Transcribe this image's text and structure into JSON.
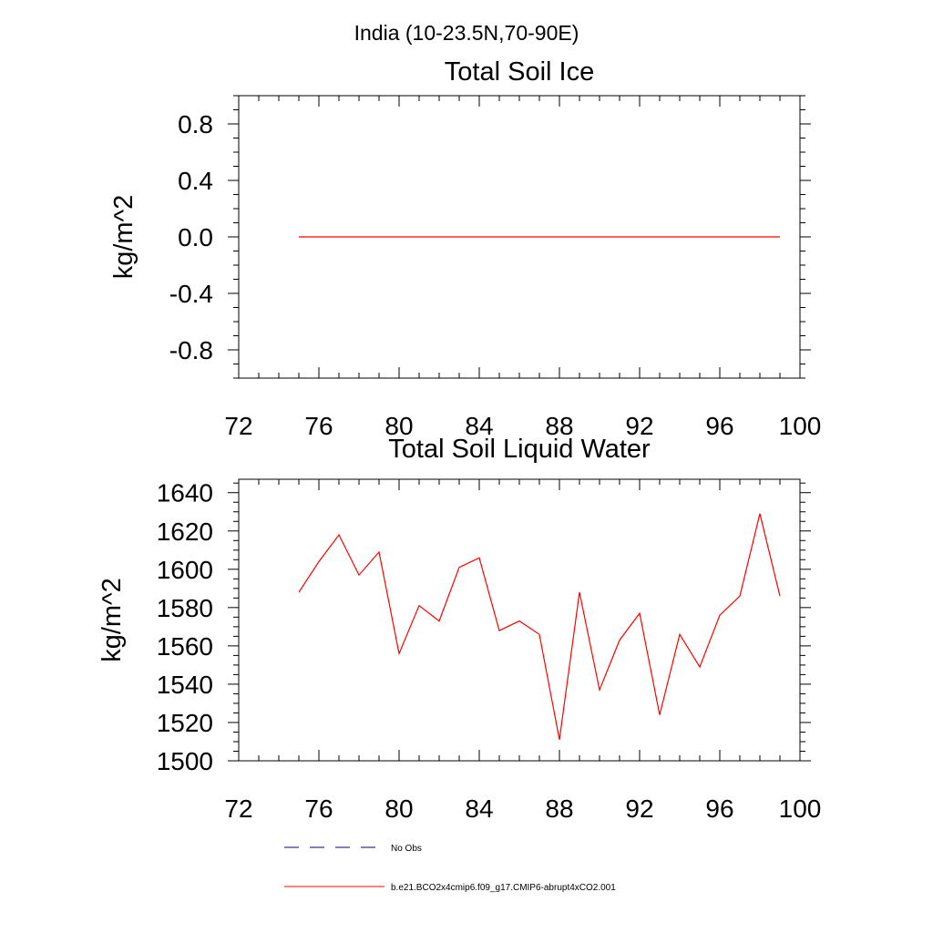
{
  "page_title": "India (10-23.5N,70-90E)",
  "legend": {
    "items": [
      {
        "label": "No Obs",
        "color": "#000080",
        "dashed": true
      },
      {
        "label": "b.e21.BCO2x4cmip6.f09_g17.CMIP6-abrupt4xCO2.001",
        "color": "#ff0000",
        "dashed": false
      }
    ]
  },
  "chart_data": [
    {
      "type": "line",
      "title": "Total Soil Ice",
      "xlabel": "",
      "ylabel": "kg/m^2",
      "xlim": [
        72,
        100
      ],
      "ylim": [
        -1,
        1
      ],
      "x_ticks": [
        "72",
        "76",
        "80",
        "84",
        "88",
        "92",
        "96",
        "100"
      ],
      "y_ticks": [
        "-0.8",
        "-0.4",
        "0.0",
        "0.4",
        "0.8"
      ],
      "grid": false,
      "series": [
        {
          "color": "#ff0000",
          "x": [
            75,
            76,
            77,
            78,
            79,
            80,
            81,
            82,
            83,
            84,
            85,
            86,
            87,
            88,
            89,
            90,
            91,
            92,
            93,
            94,
            95,
            96,
            97,
            98,
            99
          ],
          "values": [
            0,
            0,
            0,
            0,
            0,
            0,
            0,
            0,
            0,
            0,
            0,
            0,
            0,
            0,
            0,
            0,
            0,
            0,
            0,
            0,
            0,
            0,
            0,
            0,
            0
          ]
        }
      ]
    },
    {
      "type": "line",
      "title": "Total Soil Liquid Water",
      "xlabel": "",
      "ylabel": "kg/m^2",
      "xlim": [
        72,
        100
      ],
      "ylim": [
        1500,
        1647
      ],
      "x_ticks": [
        "72",
        "76",
        "80",
        "84",
        "88",
        "92",
        "96",
        "100"
      ],
      "y_ticks": [
        "1500",
        "1520",
        "1540",
        "1560",
        "1580",
        "1600",
        "1620",
        "1640"
      ],
      "grid": false,
      "series": [
        {
          "color": "#ff0000",
          "x": [
            75,
            76,
            77,
            78,
            79,
            80,
            81,
            82,
            83,
            84,
            85,
            86,
            87,
            88,
            89,
            90,
            91,
            92,
            93,
            94,
            95,
            96,
            97,
            98,
            99
          ],
          "values": [
            1588,
            1604,
            1618,
            1597,
            1609,
            1556,
            1581,
            1573,
            1601,
            1606,
            1568,
            1573,
            1566,
            1511,
            1588,
            1537,
            1563,
            1577,
            1524,
            1566,
            1549,
            1576,
            1586,
            1629,
            1586
          ]
        }
      ]
    }
  ]
}
